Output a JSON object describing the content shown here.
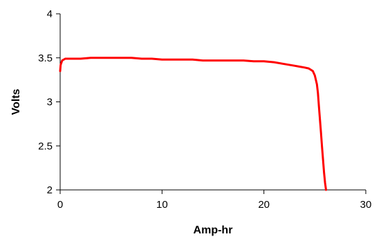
{
  "chart_data": {
    "type": "line",
    "title": "",
    "xlabel": "Amp-hr",
    "ylabel": "Volts",
    "xlim": [
      0,
      30
    ],
    "ylim": [
      2,
      4
    ],
    "x_ticks": [
      0,
      10,
      20,
      30
    ],
    "y_ticks": [
      2,
      2.5,
      3,
      3.5,
      4
    ],
    "x_tick_labels": [
      "0",
      "10",
      "20",
      "30"
    ],
    "y_tick_labels": [
      "2",
      "2.5",
      "3",
      "3.5",
      "4"
    ],
    "grid": false,
    "legend": "none",
    "series": [
      {
        "color": "#ff0000",
        "x": [
          0,
          0.05,
          0.2,
          0.5,
          1,
          2,
          3,
          4,
          5,
          6,
          7,
          8,
          9,
          10,
          11,
          12,
          13,
          14,
          15,
          16,
          17,
          18,
          19,
          20,
          21,
          22,
          23,
          23.5,
          24,
          24.4,
          24.8,
          25.0,
          25.2,
          25.3,
          25.4,
          25.5,
          25.6,
          25.7,
          25.8,
          25.9,
          26.0,
          26.1
        ],
        "y": [
          3.35,
          3.42,
          3.47,
          3.49,
          3.49,
          3.49,
          3.5,
          3.5,
          3.5,
          3.5,
          3.5,
          3.49,
          3.49,
          3.48,
          3.48,
          3.48,
          3.48,
          3.47,
          3.47,
          3.47,
          3.47,
          3.47,
          3.46,
          3.46,
          3.45,
          3.43,
          3.41,
          3.4,
          3.39,
          3.38,
          3.35,
          3.3,
          3.2,
          3.1,
          2.95,
          2.8,
          2.65,
          2.5,
          2.35,
          2.2,
          2.08,
          2.0
        ]
      }
    ]
  }
}
